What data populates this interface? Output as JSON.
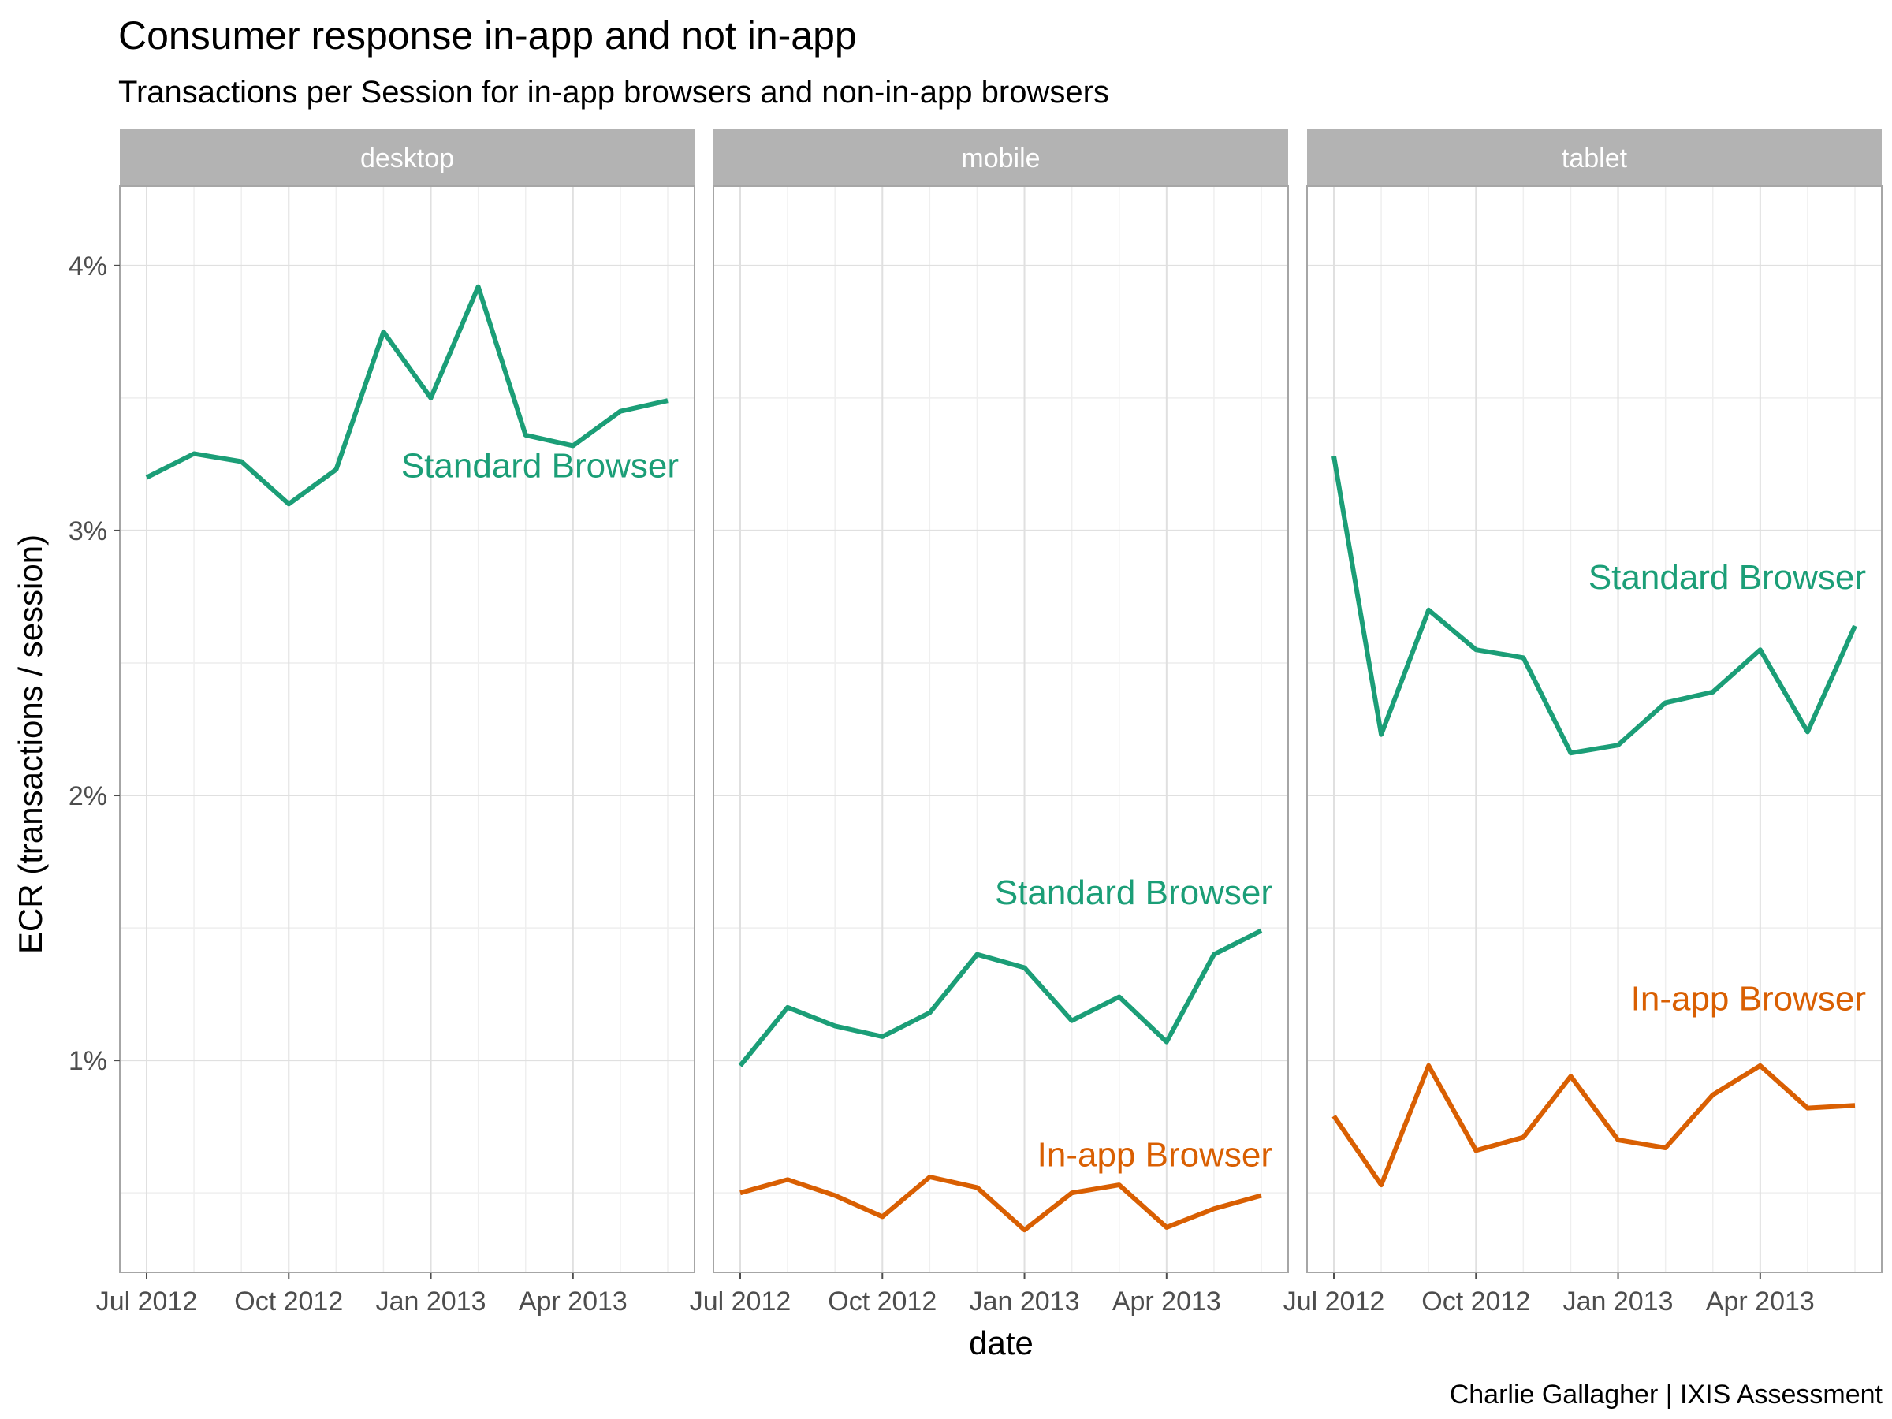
{
  "title": "Consumer response in-app and not in-app",
  "subtitle": "Transactions per Session for in-app browsers and non-in-app browsers",
  "caption": "Charlie Gallagher  |  IXIS Assessment",
  "colors": {
    "standard": "#1b9e77",
    "inapp": "#d95f02",
    "strip": "#b3b3b3",
    "grid": "#e0e0e0",
    "grid_minor": "#efefef",
    "panel_border": "#a6a6a6"
  },
  "chart_data": {
    "type": "line",
    "xlabel": "date",
    "ylabel": "ECR (transactions / session)",
    "x": [
      "2012-07",
      "2012-08",
      "2012-09",
      "2012-10",
      "2012-11",
      "2012-12",
      "2013-01",
      "2013-02",
      "2013-03",
      "2013-04",
      "2013-05",
      "2013-06"
    ],
    "x_ticks": [
      {
        "x": "2012-07",
        "label": "Jul 2012"
      },
      {
        "x": "2012-10",
        "label": "Oct 2012"
      },
      {
        "x": "2013-01",
        "label": "Jan 2013"
      },
      {
        "x": "2013-04",
        "label": "Apr 2013"
      }
    ],
    "y_ticks": [
      {
        "value": 1,
        "label": "1%"
      },
      {
        "value": 2,
        "label": "2%"
      },
      {
        "value": 3,
        "label": "3%"
      },
      {
        "value": 4,
        "label": "4%"
      }
    ],
    "ylim": [
      0.2,
      4.3
    ],
    "grid": true,
    "panels": [
      {
        "name": "desktop",
        "series": [
          {
            "name": "Standard Browser",
            "color_key": "standard",
            "values": [
              3.2,
              3.29,
              3.26,
              3.1,
              3.23,
              3.75,
              3.5,
              3.92,
              3.36,
              3.32,
              3.45,
              3.49
            ]
          }
        ]
      },
      {
        "name": "mobile",
        "series": [
          {
            "name": "Standard Browser",
            "color_key": "standard",
            "values": [
              0.98,
              1.2,
              1.13,
              1.09,
              1.18,
              1.4,
              1.35,
              1.15,
              1.24,
              1.07,
              1.4,
              1.49
            ]
          },
          {
            "name": "In-app Browser",
            "color_key": "inapp",
            "values": [
              0.5,
              0.55,
              0.49,
              0.41,
              0.56,
              0.52,
              0.36,
              0.5,
              0.53,
              0.37,
              0.44,
              0.49
            ]
          }
        ]
      },
      {
        "name": "tablet",
        "series": [
          {
            "name": "Standard Browser",
            "color_key": "standard",
            "values": [
              3.28,
              2.23,
              2.7,
              2.55,
              2.52,
              2.16,
              2.19,
              2.35,
              2.39,
              2.55,
              2.24,
              2.64
            ]
          },
          {
            "name": "In-app Browser",
            "color_key": "inapp",
            "values": [
              0.79,
              0.53,
              0.98,
              0.66,
              0.71,
              0.94,
              0.7,
              0.67,
              0.87,
              0.98,
              0.82,
              0.83
            ]
          }
        ]
      }
    ]
  }
}
